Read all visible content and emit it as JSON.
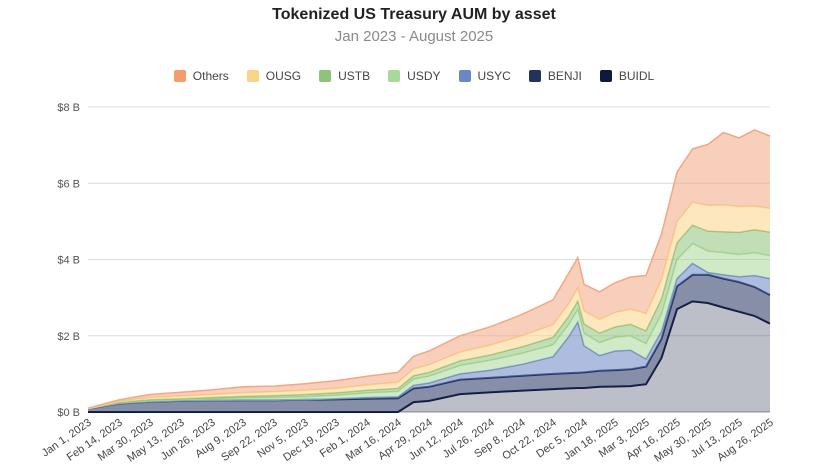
{
  "chart_data": {
    "type": "area",
    "stacked": true,
    "title": "Tokenized US Treasury AUM by asset",
    "subtitle": "Jan 2023 - August 2025",
    "y_ticks": [
      "$0 B",
      "$2 B",
      "$4 B",
      "$6 B",
      "$8 B"
    ],
    "ylim": [
      0,
      8
    ],
    "x_ticks": [
      "Jan 1, 2023",
      "Feb 14, 2023",
      "Mar 30, 2023",
      "May 13, 2023",
      "Jun 26, 2023",
      "Aug 9, 2023",
      "Sep 22, 2023",
      "Nov 5, 2023",
      "Dec 19, 2023",
      "Feb 1, 2024",
      "Mar 16, 2024",
      "Apr 29, 2024",
      "Jun 12, 2024",
      "Jul 26, 2024",
      "Sep 8, 2024",
      "Oct 22, 2024",
      "Dec 5, 2024",
      "Jan 18, 2025",
      "Mar 3, 2025",
      "Apr 16, 2025",
      "May 30, 2025",
      "Jul 13, 2025",
      "Aug 26, 2025"
    ],
    "x": [
      0,
      1,
      2,
      3,
      4,
      5,
      6,
      7,
      8,
      9,
      10,
      10.5,
      11,
      12,
      13,
      14,
      15,
      15.5,
      15.8,
      16,
      16.5,
      17,
      17.5,
      18,
      18.5,
      19,
      19.5,
      20,
      20.5,
      21,
      21.5,
      22
    ],
    "series": [
      {
        "name": "BUIDL",
        "color": "#0e1a3b",
        "values": [
          0,
          0,
          0,
          0,
          0,
          0,
          0,
          0,
          0,
          0,
          0,
          0.26,
          0.29,
          0.47,
          0.52,
          0.56,
          0.6,
          0.62,
          0.63,
          0.63,
          0.66,
          0.67,
          0.68,
          0.73,
          1.42,
          2.7,
          2.9,
          2.86,
          2.74,
          2.63,
          2.52,
          2.32
        ]
      },
      {
        "name": "BENJI",
        "color": "#22335f",
        "values": [
          0.09,
          0.22,
          0.27,
          0.29,
          0.3,
          0.31,
          0.31,
          0.32,
          0.33,
          0.35,
          0.36,
          0.36,
          0.37,
          0.38,
          0.38,
          0.39,
          0.4,
          0.4,
          0.4,
          0.41,
          0.42,
          0.43,
          0.44,
          0.46,
          0.5,
          0.6,
          0.7,
          0.74,
          0.76,
          0.78,
          0.76,
          0.75
        ]
      },
      {
        "name": "USYC",
        "color": "#6b86c4",
        "values": [
          0,
          0,
          0,
          0,
          0,
          0,
          0,
          0,
          0.02,
          0.03,
          0.04,
          0.08,
          0.1,
          0.15,
          0.2,
          0.3,
          0.45,
          0.95,
          1.33,
          0.7,
          0.4,
          0.5,
          0.5,
          0.2,
          0.2,
          0.2,
          0.3,
          0.06,
          0.1,
          0.14,
          0.3,
          0.43
        ]
      },
      {
        "name": "USDY",
        "color": "#a9d99a",
        "values": [
          0,
          0.02,
          0.03,
          0.04,
          0.05,
          0.06,
          0.07,
          0.08,
          0.09,
          0.12,
          0.14,
          0.16,
          0.18,
          0.22,
          0.26,
          0.29,
          0.31,
          0.32,
          0.33,
          0.33,
          0.34,
          0.36,
          0.38,
          0.4,
          0.45,
          0.5,
          0.52,
          0.56,
          0.58,
          0.58,
          0.6,
          0.6
        ]
      },
      {
        "name": "USTB",
        "color": "#8fc27a",
        "values": [
          0,
          0.01,
          0.02,
          0.02,
          0.03,
          0.04,
          0.05,
          0.06,
          0.06,
          0.07,
          0.08,
          0.09,
          0.1,
          0.12,
          0.14,
          0.17,
          0.2,
          0.21,
          0.22,
          0.24,
          0.25,
          0.27,
          0.3,
          0.34,
          0.4,
          0.44,
          0.48,
          0.52,
          0.55,
          0.58,
          0.6,
          0.62
        ]
      },
      {
        "name": "OUSG",
        "color": "#fbd489",
        "values": [
          0,
          0.03,
          0.06,
          0.07,
          0.08,
          0.1,
          0.1,
          0.11,
          0.12,
          0.14,
          0.16,
          0.18,
          0.2,
          0.23,
          0.26,
          0.29,
          0.33,
          0.33,
          0.34,
          0.34,
          0.36,
          0.38,
          0.4,
          0.45,
          0.5,
          0.55,
          0.6,
          0.68,
          0.7,
          0.68,
          0.62,
          0.62
        ]
      },
      {
        "name": "Others",
        "color": "#f3a783",
        "values": [
          0.01,
          0.04,
          0.08,
          0.1,
          0.12,
          0.15,
          0.15,
          0.17,
          0.2,
          0.23,
          0.26,
          0.33,
          0.36,
          0.43,
          0.48,
          0.56,
          0.65,
          0.8,
          0.8,
          0.7,
          0.72,
          0.78,
          0.84,
          1.0,
          1.2,
          1.3,
          1.4,
          1.6,
          1.9,
          1.8,
          2.0,
          1.9
        ]
      }
    ]
  },
  "legend": [
    {
      "name": "Others",
      "color": "#f49c6b"
    },
    {
      "name": "OUSG",
      "color": "#fbd489"
    },
    {
      "name": "USTB",
      "color": "#8fc27a"
    },
    {
      "name": "USDY",
      "color": "#a9d99a"
    },
    {
      "name": "USYC",
      "color": "#6b86c4"
    },
    {
      "name": "BENJI",
      "color": "#22335f"
    },
    {
      "name": "BUIDL",
      "color": "#0e1a3b"
    }
  ]
}
